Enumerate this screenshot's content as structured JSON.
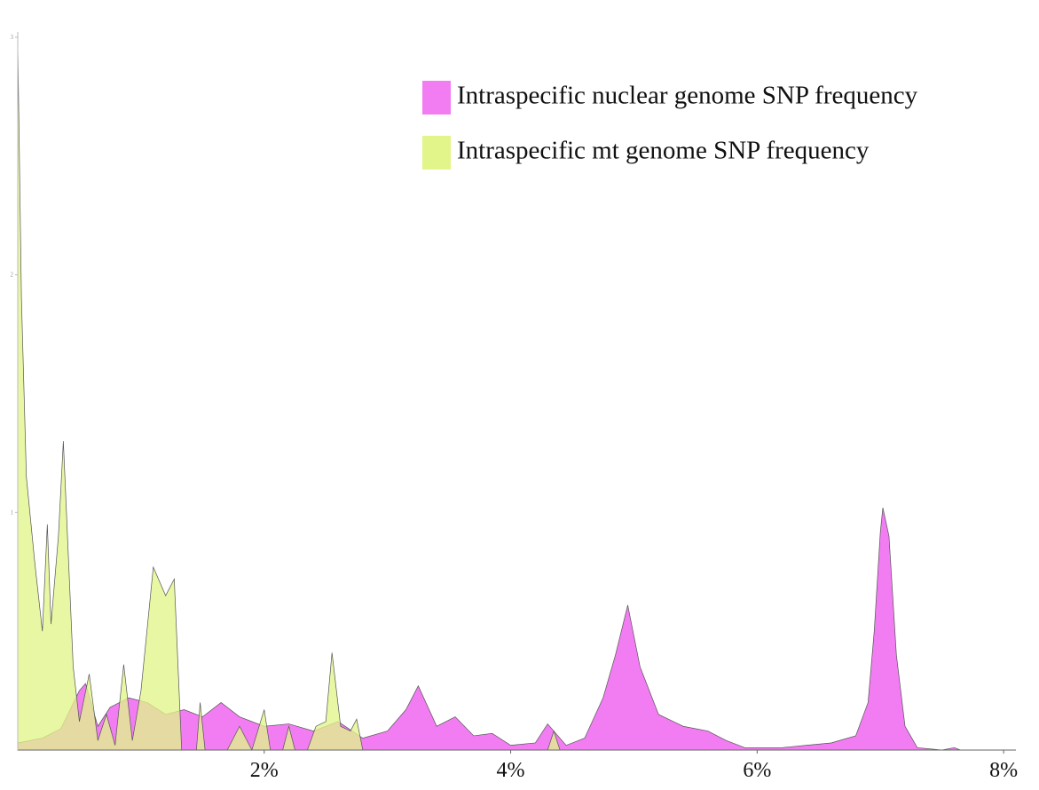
{
  "chart_data": {
    "type": "area",
    "xlim": [
      0,
      8.1
    ],
    "ylim": [
      0,
      3
    ],
    "xticks": [
      {
        "value": 2,
        "label": "2%"
      },
      {
        "value": 4,
        "label": "4%"
      },
      {
        "value": 6,
        "label": "6%"
      },
      {
        "value": 8,
        "label": "8%"
      }
    ],
    "yticks": [
      1,
      2,
      3
    ],
    "legend": "top-right",
    "series": [
      {
        "name": "Intraspecific nuclear genome SNP frequency",
        "color": "#f27df2",
        "x": [
          0,
          0.2,
          0.35,
          0.5,
          0.55,
          0.65,
          0.75,
          0.9,
          1.05,
          1.2,
          1.35,
          1.5,
          1.65,
          1.8,
          2.0,
          2.2,
          2.4,
          2.6,
          2.8,
          3.0,
          3.15,
          3.25,
          3.4,
          3.55,
          3.7,
          3.85,
          4.0,
          4.2,
          4.3,
          4.45,
          4.6,
          4.75,
          4.85,
          4.95,
          5.05,
          5.2,
          5.4,
          5.6,
          5.75,
          5.9,
          6.2,
          6.4,
          6.6,
          6.8,
          6.9,
          6.95,
          7.0,
          7.02,
          7.07,
          7.13,
          7.2,
          7.3,
          7.5,
          7.6,
          7.65
        ],
        "values": [
          0.03,
          0.05,
          0.09,
          0.25,
          0.28,
          0.1,
          0.18,
          0.22,
          0.2,
          0.15,
          0.17,
          0.14,
          0.2,
          0.14,
          0.1,
          0.11,
          0.08,
          0.12,
          0.05,
          0.08,
          0.17,
          0.27,
          0.1,
          0.14,
          0.06,
          0.07,
          0.02,
          0.03,
          0.11,
          0.02,
          0.05,
          0.22,
          0.4,
          0.61,
          0.35,
          0.15,
          0.1,
          0.08,
          0.04,
          0.01,
          0.01,
          0.02,
          0.03,
          0.06,
          0.2,
          0.5,
          0.92,
          1.02,
          0.9,
          0.4,
          0.1,
          0.01,
          0,
          0.01,
          0
        ]
      },
      {
        "name": "Intraspecific mt genome SNP frequency",
        "color": "#e2f58a",
        "x": [
          0,
          0.03,
          0.07,
          0.14,
          0.2,
          0.24,
          0.27,
          0.33,
          0.37,
          0.45,
          0.5,
          0.58,
          0.65,
          0.72,
          0.79,
          0.86,
          0.93,
          1.0,
          1.1,
          1.2,
          1.27,
          1.33,
          1.45,
          1.48,
          1.52,
          1.7,
          1.8,
          1.9,
          2.0,
          2.05,
          2.15,
          2.2,
          2.25,
          2.35,
          2.42,
          2.5,
          2.55,
          2.62,
          2.7,
          2.75,
          2.8,
          4.3,
          4.35,
          4.4
        ],
        "values": [
          2.98,
          1.9,
          1.15,
          0.78,
          0.5,
          0.95,
          0.53,
          0.9,
          1.3,
          0.35,
          0.12,
          0.32,
          0.04,
          0.15,
          0.02,
          0.36,
          0.04,
          0.25,
          0.77,
          0.65,
          0.72,
          0,
          0,
          0.2,
          0,
          0,
          0.1,
          0,
          0.17,
          0,
          0,
          0.1,
          0,
          0,
          0.1,
          0.12,
          0.41,
          0.1,
          0.08,
          0.13,
          0,
          0,
          0.08,
          0
        ]
      }
    ]
  }
}
